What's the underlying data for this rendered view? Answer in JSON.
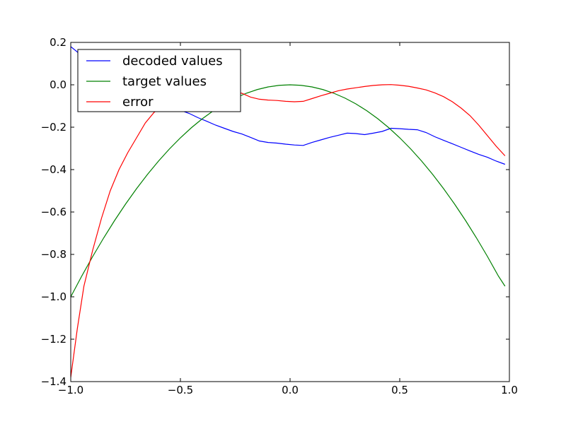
{
  "chart_data": {
    "type": "line",
    "title": "",
    "xlabel": "",
    "ylabel": "",
    "xlim": [
      -1.0,
      1.0
    ],
    "ylim": [
      -1.4,
      0.2
    ],
    "x_ticks": [
      -1.0,
      -0.5,
      0.0,
      0.5,
      1.0
    ],
    "x_tick_labels": [
      "−1.0",
      "−0.5",
      "0.0",
      "0.5",
      "1.0"
    ],
    "y_ticks": [
      0.2,
      0.0,
      -0.2,
      -0.4,
      -0.6,
      -0.8,
      -1.0,
      -1.2,
      -1.4
    ],
    "y_tick_labels": [
      "0.2",
      "0.0",
      "−0.2",
      "−0.4",
      "−0.6",
      "−0.8",
      "−1.0",
      "−1.2",
      "−1.4"
    ],
    "grid": false,
    "legend_position": "top-left",
    "series": [
      {
        "name": "decoded values",
        "color": "#0000ff",
        "points": [
          [
            -1.0,
            0.18
          ],
          [
            -0.97,
            0.155
          ],
          [
            -0.94,
            0.11
          ],
          [
            -0.9,
            0.06
          ],
          [
            -0.86,
            0.02
          ],
          [
            -0.82,
            -0.01
          ],
          [
            -0.78,
            -0.03
          ],
          [
            -0.74,
            -0.05
          ],
          [
            -0.7,
            -0.065
          ],
          [
            -0.66,
            -0.08
          ],
          [
            -0.62,
            -0.09
          ],
          [
            -0.58,
            -0.1
          ],
          [
            -0.54,
            -0.105
          ],
          [
            -0.5,
            -0.12
          ],
          [
            -0.46,
            -0.135
          ],
          [
            -0.42,
            -0.155
          ],
          [
            -0.38,
            -0.172
          ],
          [
            -0.34,
            -0.19
          ],
          [
            -0.3,
            -0.205
          ],
          [
            -0.26,
            -0.22
          ],
          [
            -0.22,
            -0.232
          ],
          [
            -0.18,
            -0.248
          ],
          [
            -0.14,
            -0.265
          ],
          [
            -0.1,
            -0.272
          ],
          [
            -0.06,
            -0.275
          ],
          [
            -0.02,
            -0.28
          ],
          [
            0.02,
            -0.284
          ],
          [
            0.06,
            -0.286
          ],
          [
            0.1,
            -0.272
          ],
          [
            0.14,
            -0.26
          ],
          [
            0.18,
            -0.248
          ],
          [
            0.22,
            -0.238
          ],
          [
            0.26,
            -0.228
          ],
          [
            0.3,
            -0.23
          ],
          [
            0.34,
            -0.235
          ],
          [
            0.38,
            -0.228
          ],
          [
            0.42,
            -0.22
          ],
          [
            0.46,
            -0.205
          ],
          [
            0.5,
            -0.207
          ],
          [
            0.54,
            -0.21
          ],
          [
            0.58,
            -0.212
          ],
          [
            0.62,
            -0.225
          ],
          [
            0.66,
            -0.245
          ],
          [
            0.7,
            -0.262
          ],
          [
            0.74,
            -0.278
          ],
          [
            0.78,
            -0.295
          ],
          [
            0.82,
            -0.312
          ],
          [
            0.86,
            -0.328
          ],
          [
            0.9,
            -0.342
          ],
          [
            0.94,
            -0.36
          ],
          [
            0.98,
            -0.375
          ]
        ]
      },
      {
        "name": "target values",
        "color": "#008000",
        "points": [
          [
            -1.0,
            -1.0
          ],
          [
            -0.95,
            -0.9025
          ],
          [
            -0.9,
            -0.81
          ],
          [
            -0.85,
            -0.7225
          ],
          [
            -0.8,
            -0.64
          ],
          [
            -0.75,
            -0.5625
          ],
          [
            -0.7,
            -0.49
          ],
          [
            -0.65,
            -0.4225
          ],
          [
            -0.6,
            -0.36
          ],
          [
            -0.55,
            -0.3025
          ],
          [
            -0.5,
            -0.25
          ],
          [
            -0.45,
            -0.2025
          ],
          [
            -0.4,
            -0.16
          ],
          [
            -0.35,
            -0.1225
          ],
          [
            -0.3,
            -0.09
          ],
          [
            -0.25,
            -0.0625
          ],
          [
            -0.2,
            -0.04
          ],
          [
            -0.15,
            -0.0225
          ],
          [
            -0.1,
            -0.01
          ],
          [
            -0.05,
            -0.0025
          ],
          [
            0.0,
            0.0
          ],
          [
            0.05,
            -0.0025
          ],
          [
            0.1,
            -0.01
          ],
          [
            0.15,
            -0.0225
          ],
          [
            0.2,
            -0.04
          ],
          [
            0.25,
            -0.0625
          ],
          [
            0.3,
            -0.09
          ],
          [
            0.35,
            -0.1225
          ],
          [
            0.4,
            -0.16
          ],
          [
            0.45,
            -0.2025
          ],
          [
            0.5,
            -0.25
          ],
          [
            0.55,
            -0.3025
          ],
          [
            0.6,
            -0.36
          ],
          [
            0.65,
            -0.4225
          ],
          [
            0.7,
            -0.49
          ],
          [
            0.75,
            -0.5625
          ],
          [
            0.8,
            -0.64
          ],
          [
            0.85,
            -0.7225
          ],
          [
            0.9,
            -0.81
          ],
          [
            0.95,
            -0.9025
          ],
          [
            0.98,
            -0.95
          ]
        ]
      },
      {
        "name": "error",
        "color": "#ff0000",
        "points": [
          [
            -1.0,
            -1.38
          ],
          [
            -0.97,
            -1.15
          ],
          [
            -0.94,
            -0.95
          ],
          [
            -0.9,
            -0.78
          ],
          [
            -0.86,
            -0.63
          ],
          [
            -0.82,
            -0.5
          ],
          [
            -0.78,
            -0.4
          ],
          [
            -0.74,
            -0.32
          ],
          [
            -0.7,
            -0.25
          ],
          [
            -0.66,
            -0.18
          ],
          [
            -0.62,
            -0.13
          ],
          [
            -0.58,
            -0.1
          ],
          [
            -0.54,
            -0.09
          ],
          [
            -0.5,
            -0.085
          ],
          [
            -0.46,
            -0.075
          ],
          [
            -0.42,
            -0.06
          ],
          [
            -0.38,
            -0.045
          ],
          [
            -0.34,
            -0.035
          ],
          [
            -0.3,
            -0.032
          ],
          [
            -0.26,
            -0.03
          ],
          [
            -0.22,
            -0.04
          ],
          [
            -0.18,
            -0.058
          ],
          [
            -0.14,
            -0.068
          ],
          [
            -0.1,
            -0.072
          ],
          [
            -0.06,
            -0.074
          ],
          [
            -0.02,
            -0.078
          ],
          [
            0.02,
            -0.08
          ],
          [
            0.06,
            -0.078
          ],
          [
            0.1,
            -0.065
          ],
          [
            0.14,
            -0.052
          ],
          [
            0.18,
            -0.04
          ],
          [
            0.22,
            -0.028
          ],
          [
            0.26,
            -0.02
          ],
          [
            0.3,
            -0.014
          ],
          [
            0.34,
            -0.008
          ],
          [
            0.38,
            -0.003
          ],
          [
            0.42,
            0.0
          ],
          [
            0.46,
            0.001
          ],
          [
            0.5,
            -0.002
          ],
          [
            0.54,
            -0.007
          ],
          [
            0.58,
            -0.015
          ],
          [
            0.62,
            -0.024
          ],
          [
            0.66,
            -0.038
          ],
          [
            0.7,
            -0.056
          ],
          [
            0.74,
            -0.08
          ],
          [
            0.78,
            -0.11
          ],
          [
            0.82,
            -0.145
          ],
          [
            0.86,
            -0.19
          ],
          [
            0.9,
            -0.24
          ],
          [
            0.94,
            -0.29
          ],
          [
            0.98,
            -0.335
          ]
        ]
      }
    ]
  }
}
